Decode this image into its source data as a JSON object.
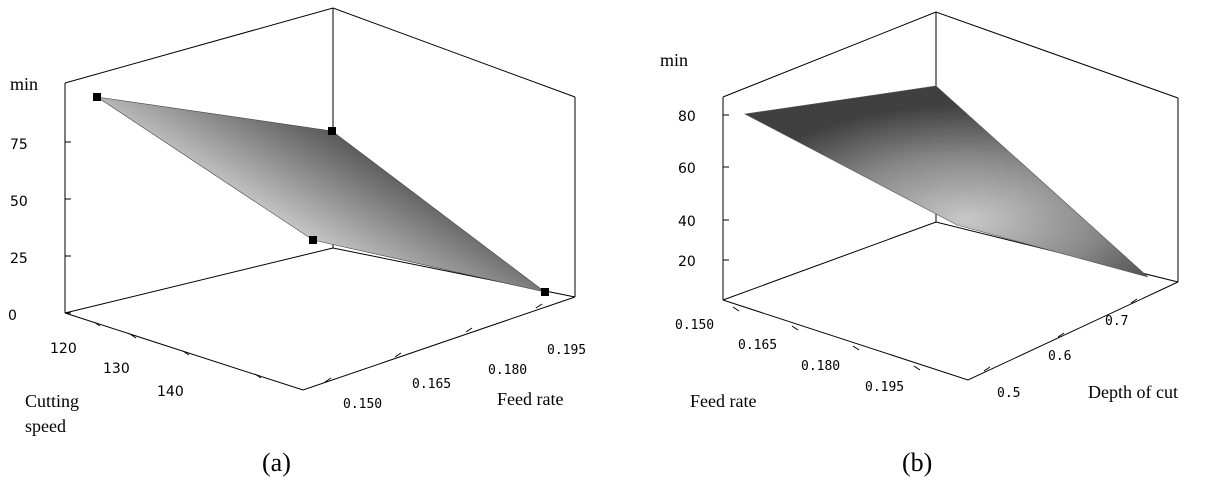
{
  "chart_data": [
    {
      "type": "surface3d",
      "caption": "(a)",
      "zlabel": "min",
      "z_ticks": [
        "0",
        "25",
        "50",
        "75"
      ],
      "x_axis_label": "Cutting speed",
      "x_ticks": [
        "120",
        "130",
        "140"
      ],
      "y_axis_label": "Feed rate",
      "y_ticks": [
        "0.150",
        "0.165",
        "0.180",
        "0.195"
      ],
      "points": [
        {
          "cutting_speed": 120,
          "feed_rate": 0.15,
          "min": 85
        },
        {
          "cutting_speed": 120,
          "feed_rate": 0.195,
          "min": 65
        },
        {
          "cutting_speed": 145,
          "feed_rate": 0.15,
          "min": 30
        },
        {
          "cutting_speed": 145,
          "feed_rate": 0.195,
          "min": 10
        }
      ],
      "colors": {
        "surface_dark": "#3a3a3a",
        "surface_light": "#b8b8b8",
        "marker": "#000000"
      }
    },
    {
      "type": "surface3d",
      "caption": "(b)",
      "zlabel": "min",
      "z_ticks": [
        "20",
        "40",
        "60",
        "80"
      ],
      "x_axis_label": "Feed rate",
      "x_ticks": [
        "0.150",
        "0.165",
        "0.180",
        "0.195"
      ],
      "y_axis_label": "Depth of cut",
      "y_ticks": [
        "0.5",
        "0.6",
        "0.7"
      ],
      "points": [
        {
          "feed_rate": 0.15,
          "depth_of_cut": 0.75,
          "min": 78
        },
        {
          "feed_rate": 0.15,
          "depth_of_cut": 0.45,
          "min": 58
        },
        {
          "feed_rate": 0.195,
          "depth_of_cut": 0.75,
          "min": 82
        },
        {
          "feed_rate": 0.195,
          "depth_of_cut": 0.45,
          "min": 15
        }
      ],
      "colors": {
        "surface_dark": "#4a4a4a",
        "surface_light": "#bdbdbd"
      }
    }
  ]
}
